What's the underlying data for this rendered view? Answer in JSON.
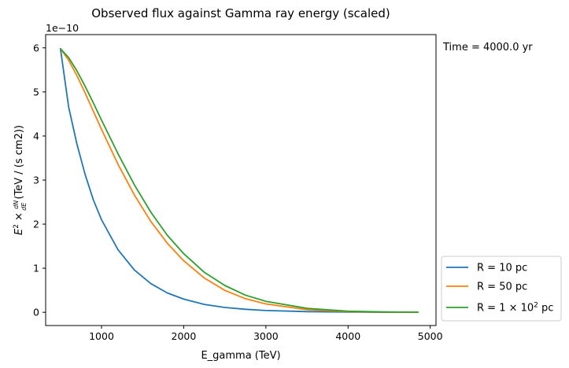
{
  "chart_data": {
    "type": "line",
    "title": "Observed flux against Gamma ray energy (scaled)",
    "xlabel": "E_gamma (TeV)",
    "ylabel_parts": {
      "base_e": "E",
      "sup2": "2",
      "times": " × ",
      "frac_num": "dN",
      "frac_den": "dE",
      "unit": " (TeV / (s cm2))"
    },
    "y_offset_text": "1e−10",
    "y_scale": 1e-10,
    "side_text": "Time = 4000.0 yr",
    "xlim": [
      320,
      5070
    ],
    "ylim": [
      -0.3,
      6.3
    ],
    "xticks": [
      1000,
      2000,
      3000,
      4000,
      5000
    ],
    "yticks": [
      0,
      1,
      2,
      3,
      4,
      5,
      6
    ],
    "grid": false,
    "legend_position": "lower-right-outside",
    "series": [
      {
        "name": "R = 10 pc",
        "name_parts": {
          "pre": "R = 10 pc",
          "sup": "",
          "post": ""
        },
        "color": "#1f77b4",
        "x": [
          500,
          600,
          700,
          800,
          900,
          1000,
          1200,
          1400,
          1600,
          1800,
          2000,
          2250,
          2500,
          2750,
          3000,
          3500,
          4000,
          4500,
          4850
        ],
        "y": [
          5.98,
          4.66,
          3.82,
          3.13,
          2.55,
          2.1,
          1.42,
          0.96,
          0.65,
          0.44,
          0.3,
          0.18,
          0.11,
          0.07,
          0.04,
          0.015,
          0.005,
          0.002,
          0.001
        ]
      },
      {
        "name": "R = 50 pc",
        "name_parts": {
          "pre": "R = 50 pc",
          "sup": "",
          "post": ""
        },
        "color": "#ff7f0e",
        "x": [
          500,
          600,
          700,
          800,
          900,
          1000,
          1200,
          1400,
          1600,
          1800,
          2000,
          2250,
          2500,
          2750,
          3000,
          3500,
          4000,
          4500,
          4850
        ],
        "y": [
          5.98,
          5.72,
          5.37,
          4.98,
          4.56,
          4.15,
          3.36,
          2.66,
          2.06,
          1.57,
          1.17,
          0.78,
          0.5,
          0.31,
          0.19,
          0.06,
          0.015,
          0.004,
          0.002
        ]
      },
      {
        "name": "R = 1 × 10^2 pc",
        "name_parts": {
          "pre": "R = 1 × 10",
          "sup": "2",
          "post": " pc"
        },
        "color": "#2ca02c",
        "x": [
          500,
          600,
          700,
          800,
          900,
          1000,
          1200,
          1400,
          1600,
          1800,
          2000,
          2250,
          2500,
          2750,
          3000,
          3500,
          4000,
          4500,
          4850
        ],
        "y": [
          5.98,
          5.78,
          5.48,
          5.13,
          4.75,
          4.36,
          3.6,
          2.89,
          2.27,
          1.75,
          1.33,
          0.91,
          0.61,
          0.39,
          0.25,
          0.09,
          0.025,
          0.006,
          0.003
        ]
      }
    ]
  }
}
